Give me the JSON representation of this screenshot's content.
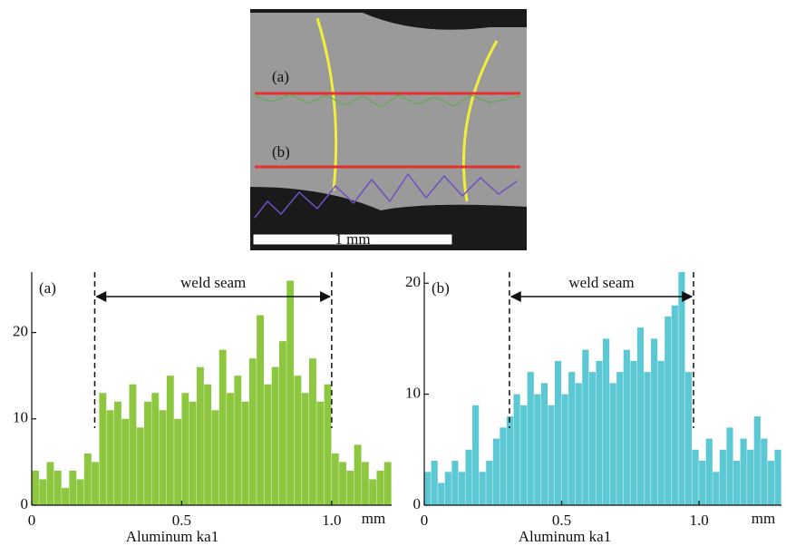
{
  "image": {
    "labels": [
      "(a)",
      "(b)"
    ],
    "scale_bar": "1 mm"
  },
  "chart_data": [
    {
      "type": "histogram",
      "panel_label": "(a)",
      "annotation": "weld seam",
      "xlabel": "Aluminum ka1",
      "x_unit": "mm",
      "color": "#8dc63f",
      "xlim": [
        0,
        1.2
      ],
      "ylim": [
        0,
        27
      ],
      "xticks": [
        0,
        0.5,
        {
          "value": 1,
          "label": "1.0"
        }
      ],
      "yticks": [
        0,
        10,
        20
      ],
      "seam_x": [
        0.21,
        1.0
      ],
      "bins": [
        0,
        0.025,
        0.05,
        0.075,
        0.1,
        0.125,
        0.15,
        0.175,
        0.2,
        0.225,
        0.25,
        0.275,
        0.3,
        0.325,
        0.35,
        0.375,
        0.4,
        0.425,
        0.45,
        0.475,
        0.5,
        0.525,
        0.55,
        0.575,
        0.6,
        0.625,
        0.65,
        0.675,
        0.7,
        0.725,
        0.75,
        0.775,
        0.8,
        0.825,
        0.85,
        0.875,
        0.9,
        0.925,
        0.95,
        0.975,
        1.0,
        1.025,
        1.05,
        1.075,
        1.1,
        1.125,
        1.15,
        1.175,
        1.2
      ],
      "values": [
        4,
        3,
        5,
        4,
        2,
        4,
        3,
        6,
        5,
        13,
        11,
        12,
        10,
        14,
        9,
        12,
        13,
        11,
        15,
        10,
        13,
        12,
        16,
        14,
        11,
        18,
        13,
        15,
        12,
        17,
        22,
        14,
        16,
        19,
        26,
        15,
        13,
        17,
        12,
        14,
        6,
        5,
        4,
        7,
        5,
        3,
        4,
        5
      ]
    },
    {
      "type": "histogram",
      "panel_label": "(b)",
      "annotation": "weld seam",
      "xlabel": "Aluminum ka1",
      "x_unit": "mm",
      "color": "#5bc8d4",
      "xlim": [
        0,
        1.3
      ],
      "ylim": [
        0,
        21
      ],
      "xticks": [
        0,
        0.5,
        {
          "value": 1,
          "label": "1.0"
        }
      ],
      "yticks": [
        0,
        10,
        20
      ],
      "seam_x": [
        0.31,
        0.98
      ],
      "bins": [
        0,
        0.025,
        0.05,
        0.075,
        0.1,
        0.125,
        0.15,
        0.175,
        0.2,
        0.225,
        0.25,
        0.275,
        0.3,
        0.325,
        0.35,
        0.375,
        0.4,
        0.425,
        0.45,
        0.475,
        0.5,
        0.525,
        0.55,
        0.575,
        0.6,
        0.625,
        0.65,
        0.675,
        0.7,
        0.725,
        0.75,
        0.775,
        0.8,
        0.825,
        0.85,
        0.875,
        0.9,
        0.925,
        0.95,
        0.975,
        1.0,
        1.025,
        1.05,
        1.075,
        1.1,
        1.125,
        1.15,
        1.175,
        1.2,
        1.225,
        1.25,
        1.275,
        1.3
      ],
      "values": [
        3,
        4,
        2,
        3,
        4,
        3,
        5,
        9,
        3,
        4,
        6,
        7,
        8,
        10,
        9,
        12,
        10,
        11,
        9,
        13,
        10,
        12,
        11,
        14,
        12,
        13,
        15,
        11,
        12,
        14,
        13,
        16,
        12,
        15,
        13,
        17,
        18,
        21,
        12,
        5,
        4,
        6,
        3,
        5,
        7,
        4,
        6,
        5,
        8,
        6,
        4,
        5
      ]
    }
  ]
}
